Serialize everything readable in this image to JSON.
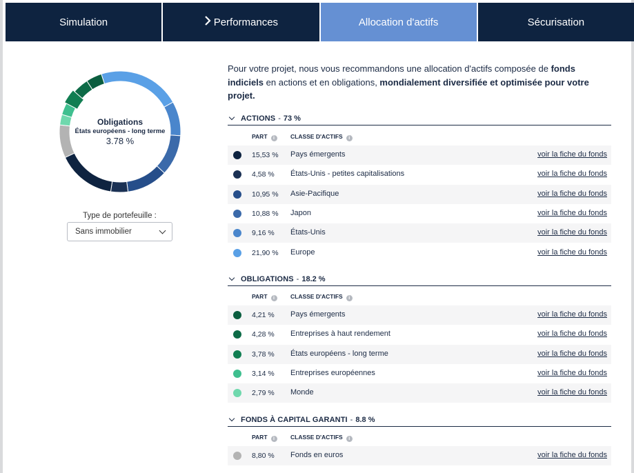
{
  "tabs": [
    {
      "label": "Simulation",
      "active": false,
      "chevron": false
    },
    {
      "label": "Performances",
      "active": false,
      "chevron": true
    },
    {
      "label": "Allocation d'actifs",
      "active": true,
      "chevron": false
    },
    {
      "label": "Sécurisation",
      "active": false,
      "chevron": false
    }
  ],
  "donut": {
    "title": "Obligations",
    "subtitle": "États européens - long terme",
    "value": "3.78 %"
  },
  "portfolio": {
    "label": "Type de portefeuille :",
    "selected": "Sans immobilier"
  },
  "intro": {
    "t1": "Pour votre projet, nous vous recommandons une allocation d'actifs composée de ",
    "b1": "fonds indiciels",
    "t2": " en actions et en obligations, ",
    "b2": "mondialement diversifiée et optimisée pour votre projet."
  },
  "columns": {
    "part": "PART",
    "classe": "CLASSE D'ACTIFS",
    "info_glyph": "i"
  },
  "link_label": "voir la fiche du fonds",
  "sections": [
    {
      "title": "ACTIONS",
      "pct": "73 %",
      "rows": [
        {
          "pct": "15,53 %",
          "name": "Pays émergents",
          "color": "#0e2340",
          "share": 15.53
        },
        {
          "pct": "4,58 %",
          "name": "États-Unis - petites capitalisations",
          "color": "#1b3154",
          "share": 4.58
        },
        {
          "pct": "10,95 %",
          "name": "Asie-Pacifique",
          "color": "#264e8a",
          "share": 10.95
        },
        {
          "pct": "10,88 %",
          "name": "Japon",
          "color": "#3b6aaa",
          "share": 10.88
        },
        {
          "pct": "9,16 %",
          "name": "États-Unis",
          "color": "#4a86cc",
          "share": 9.16
        },
        {
          "pct": "21,90 %",
          "name": "Europe",
          "color": "#5aa0e6",
          "share": 21.9
        }
      ]
    },
    {
      "title": "OBLIGATIONS",
      "pct": "18.2 %",
      "rows": [
        {
          "pct": "4,21 %",
          "name": "Pays émergents",
          "color": "#0b5e3f",
          "share": 4.21
        },
        {
          "pct": "4,28 %",
          "name": "Entreprises à haut rendement",
          "color": "#0d6b47",
          "share": 4.28
        },
        {
          "pct": "3,78 %",
          "name": "États européens - long terme",
          "color": "#117e52",
          "share": 3.78
        },
        {
          "pct": "3,14 %",
          "name": "Entreprises européennes",
          "color": "#3fbf8f",
          "share": 3.14
        },
        {
          "pct": "2,79 %",
          "name": "Monde",
          "color": "#6fd8ad",
          "share": 2.79
        }
      ]
    },
    {
      "title": "FONDS À CAPITAL GARANTI",
      "pct": "8.8 %",
      "rows": [
        {
          "pct": "8,80 %",
          "name": "Fonds en euros",
          "color": "#b3b3b3",
          "share": 8.8
        }
      ]
    }
  ]
}
